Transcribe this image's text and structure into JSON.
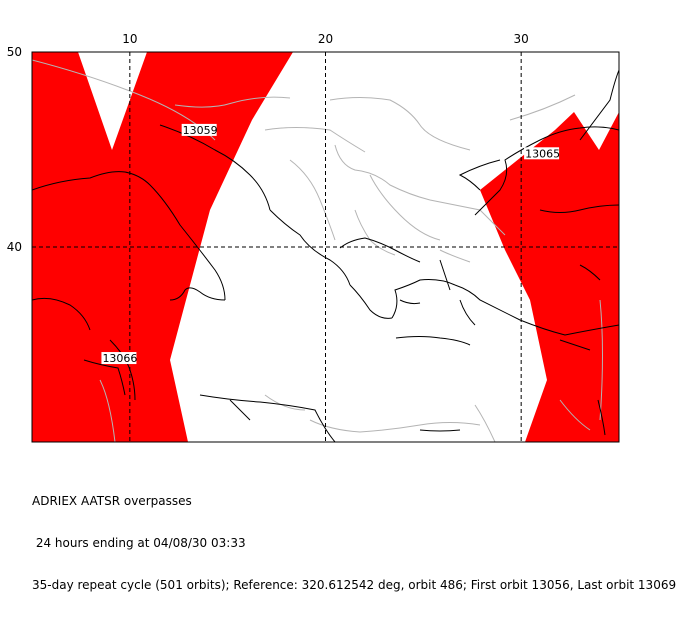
{
  "map": {
    "lon_range": [
      5,
      35
    ],
    "lat_range": [
      30,
      50
    ],
    "lon_ticks": [
      {
        "label": "10",
        "value": 10
      },
      {
        "label": "20",
        "value": 20
      },
      {
        "label": "30",
        "value": 30
      }
    ],
    "lat_ticks": [
      {
        "label": "50",
        "value": 50
      },
      {
        "label": "40",
        "value": 40
      }
    ],
    "swath_color": "#ff0000",
    "coast_color": "#000000",
    "border_color": "#b4b4b4",
    "grid_style": "dashed",
    "orbit_labels": [
      {
        "text": "13059",
        "lon": 12.7,
        "lat": 45.8
      },
      {
        "text": "13065",
        "lon": 30.2,
        "lat": 44.6
      },
      {
        "text": "13066",
        "lon": 8.6,
        "lat": 34.1
      }
    ]
  },
  "caption": {
    "line1": "ADRIEX AATSR overpasses",
    "line2": " 24 hours ending at 04/08/30 03:33",
    "line3": "35-day repeat cycle (501 orbits); Reference: 320.612542 deg, orbit 486; First orbit 13056, Last orbit 13069"
  }
}
